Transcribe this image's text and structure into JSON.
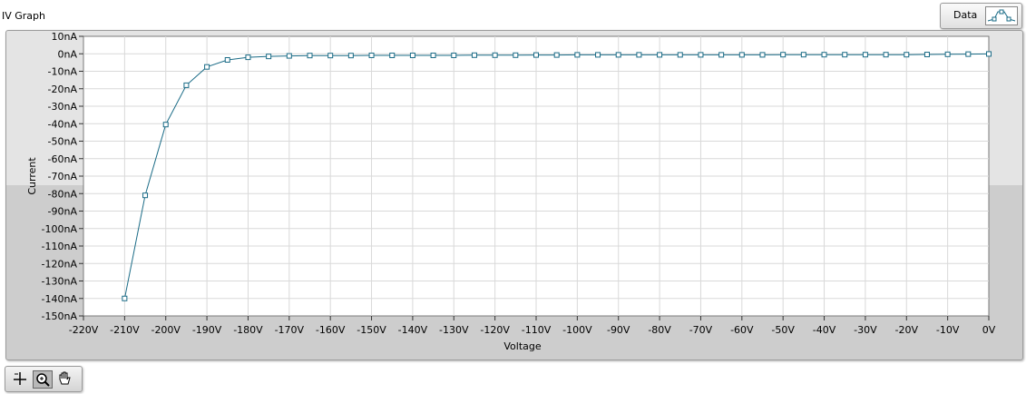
{
  "graph": {
    "title": "IV Graph",
    "legend_label": "Data"
  },
  "chart_data": {
    "type": "line",
    "title": "",
    "xlabel": "Voltage",
    "ylabel": "Current",
    "xlim": [
      -220,
      0
    ],
    "ylim": [
      -150,
      10
    ],
    "x_ticks": [
      "-220V",
      "-210V",
      "-200V",
      "-190V",
      "-180V",
      "-170V",
      "-160V",
      "-150V",
      "-140V",
      "-130V",
      "-120V",
      "-110V",
      "-100V",
      "-90V",
      "-80V",
      "-70V",
      "-60V",
      "-50V",
      "-40V",
      "-30V",
      "-20V",
      "-10V",
      "0V"
    ],
    "y_ticks": [
      "10nA",
      "0nA",
      "-10nA",
      "-20nA",
      "-30nA",
      "-40nA",
      "-50nA",
      "-60nA",
      "-70nA",
      "-80nA",
      "-90nA",
      "-100nA",
      "-110nA",
      "-120nA",
      "-130nA",
      "-140nA",
      "-150nA"
    ],
    "grid": true,
    "legend": "top-right",
    "series": [
      {
        "name": "Data",
        "color": "#1a6b86",
        "x": [
          -210,
          -205,
          -200,
          -195,
          -190,
          -185,
          -180,
          -175,
          -170,
          -165,
          -160,
          -155,
          -150,
          -145,
          -140,
          -135,
          -130,
          -125,
          -120,
          -115,
          -110,
          -105,
          -100,
          -95,
          -90,
          -85,
          -80,
          -75,
          -70,
          -65,
          -60,
          -55,
          -50,
          -45,
          -40,
          -35,
          -30,
          -25,
          -20,
          -15,
          -10,
          -5,
          0
        ],
        "y": [
          -140,
          -81,
          -40.5,
          -18,
          -7.5,
          -3.5,
          -2,
          -1.5,
          -1.2,
          -1,
          -1,
          -1,
          -0.9,
          -0.9,
          -0.9,
          -0.9,
          -0.9,
          -0.8,
          -0.8,
          -0.8,
          -0.7,
          -0.7,
          -0.6,
          -0.6,
          -0.6,
          -0.6,
          -0.6,
          -0.6,
          -0.6,
          -0.6,
          -0.6,
          -0.6,
          -0.5,
          -0.5,
          -0.5,
          -0.5,
          -0.5,
          -0.5,
          -0.5,
          -0.4,
          -0.3,
          -0.2,
          -0.1
        ]
      }
    ]
  },
  "palette": {
    "tools": [
      "cursor-tool-icon",
      "zoom-tool-icon",
      "pan-tool-icon"
    ]
  }
}
